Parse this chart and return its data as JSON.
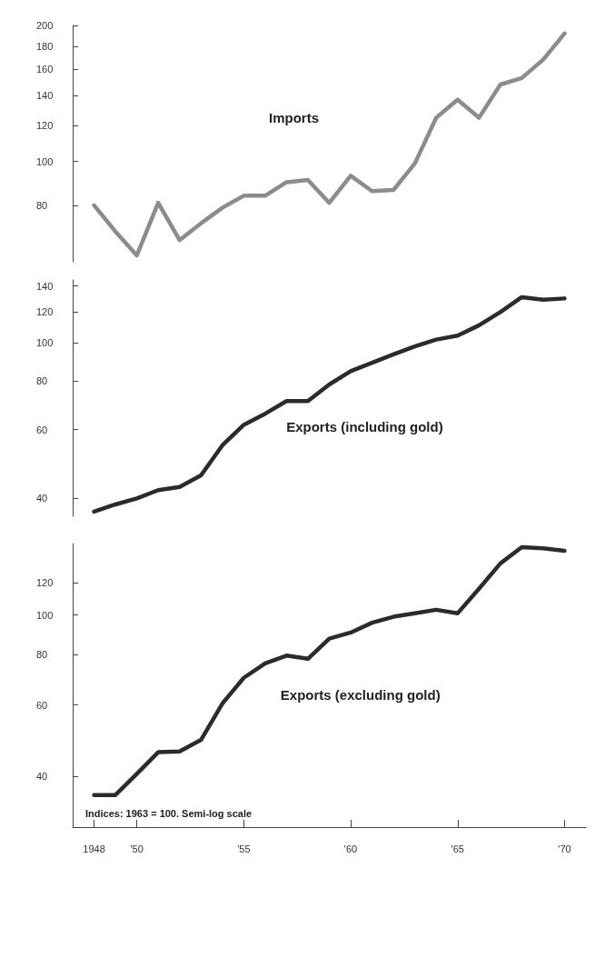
{
  "chart_data": [
    {
      "type": "line",
      "x": [
        1948,
        1949,
        1950,
        1951,
        1952,
        1953,
        1954,
        1955,
        1956,
        1957,
        1958,
        1959,
        1960,
        1961,
        1962,
        1963,
        1964,
        1965,
        1966,
        1967,
        1968,
        1969,
        1970
      ],
      "series": [
        {
          "name": "Imports",
          "color": "#8c8c8c",
          "values": [
            80,
            70,
            62,
            81,
            67,
            73,
            79,
            84,
            84,
            90,
            91,
            81,
            93,
            86,
            86.5,
            99,
            125,
            137,
            125,
            148,
            153,
            168,
            192
          ]
        }
      ],
      "xlim": [
        1947,
        1971
      ],
      "ylim": [
        60,
        200
      ],
      "yticks": [
        80,
        100,
        120,
        140,
        160,
        180,
        200
      ],
      "log": true,
      "marker": "none",
      "tick_labels": "y"
    },
    {
      "type": "line",
      "x": [
        1948,
        1949,
        1950,
        1951,
        1952,
        1953,
        1954,
        1955,
        1956,
        1957,
        1958,
        1959,
        1960,
        1961,
        1962,
        1963,
        1964,
        1965,
        1966,
        1967,
        1968,
        1969,
        1970
      ],
      "series": [
        {
          "name": "Exports (including gold)",
          "color": "#2b2b2b",
          "values": [
            37,
            38.6,
            40,
            42,
            42.8,
            45.8,
            54.7,
            61.7,
            65.9,
            71,
            71,
            78.3,
            84.7,
            89,
            93.5,
            98,
            102,
            104.4,
            111,
            120,
            131,
            129,
            130
          ]
        }
      ],
      "xlim": [
        1947,
        1971
      ],
      "ylim": [
        36,
        145
      ],
      "yticks": [
        40,
        60,
        80,
        100,
        120,
        140
      ],
      "log": true,
      "marker": "none",
      "tick_labels": "y"
    },
    {
      "type": "line",
      "x": [
        1948,
        1949,
        1950,
        1951,
        1952,
        1953,
        1954,
        1955,
        1956,
        1957,
        1958,
        1959,
        1960,
        1961,
        1962,
        1963,
        1964,
        1965,
        1966,
        1967,
        1968,
        1969,
        1970
      ],
      "series": [
        {
          "name": "Exports (excluding gold)",
          "color": "#2b2b2b",
          "values": [
            36,
            36,
            40.6,
            45.9,
            46.1,
            49.2,
            60.5,
            70,
            76,
            79.4,
            78,
            87.4,
            90.5,
            95.7,
            99,
            101,
            103,
            101,
            116,
            134,
            147,
            146,
            144
          ]
        }
      ],
      "xlim": [
        1947,
        1971
      ],
      "ylim": [
        30,
        150
      ],
      "yticks": [
        40,
        60,
        80,
        100,
        120
      ],
      "xticks": [
        {
          "value": 1948,
          "label": "1948"
        },
        {
          "value": 1950,
          "label": "'50"
        },
        {
          "value": 1955,
          "label": "'55"
        },
        {
          "value": 1960,
          "label": "'60"
        },
        {
          "value": 1965,
          "label": "'65"
        },
        {
          "value": 1970,
          "label": "'70"
        }
      ],
      "log": true,
      "marker": "none",
      "annotations": [
        "Indices: 1963 = 100. Semi-log scale"
      ]
    }
  ]
}
